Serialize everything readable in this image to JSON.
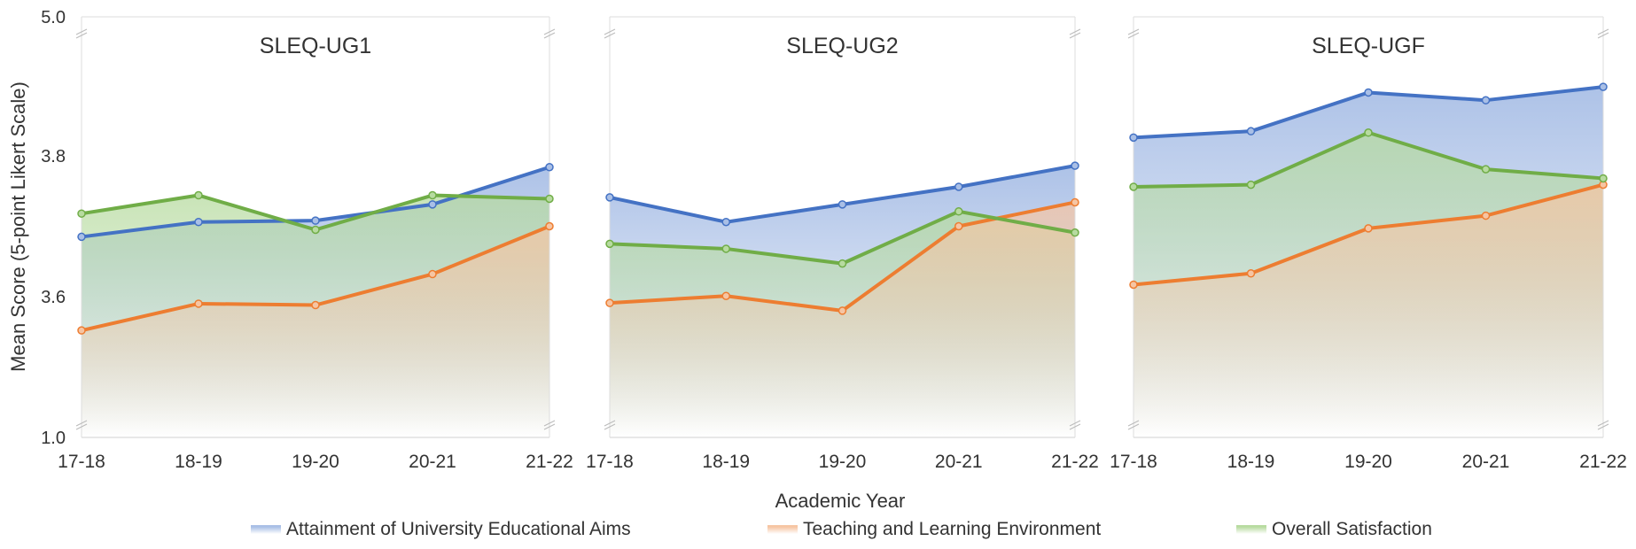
{
  "chart_data": {
    "type": "area",
    "ylabel": "Mean Score (5-point Likert Scale)",
    "xlabel": "Academic Year",
    "y_tick_labels": [
      "5.0",
      "3.8",
      "3.6",
      "1.0"
    ],
    "y_axis_note": "broken axis: 1.0 at bottom, then 3.6, 3.8, with break up to 5.0",
    "x_tick_labels": [
      "17-18",
      "18-19",
      "19-20",
      "20-21",
      "21-22"
    ],
    "grid": false,
    "legend_position": "bottom",
    "series_meta": [
      {
        "name": "Attainment of University Educational Aims",
        "color": "#4472c4",
        "fill": "#a9bfe6"
      },
      {
        "name": "Teaching and Learning Environment",
        "color": "#ed7d31",
        "fill": "#f6c5a3"
      },
      {
        "name": "Overall Satisfaction",
        "color": "#70ad47",
        "fill": "#b7dba0"
      }
    ],
    "panels": [
      {
        "title": "SLEQ-UG1",
        "series": [
          {
            "name": "Attainment of University Educational Aims",
            "values": [
              3.685,
              3.706,
              3.708,
              3.731,
              3.784
            ]
          },
          {
            "name": "Teaching and Learning Environment",
            "values": [
              3.552,
              3.59,
              3.588,
              3.632,
              3.7
            ]
          },
          {
            "name": "Overall Satisfaction",
            "values": [
              3.718,
              3.744,
              3.695,
              3.744,
              3.739
            ]
          }
        ]
      },
      {
        "title": "SLEQ-UG2",
        "series": [
          {
            "name": "Attainment of University Educational Aims",
            "values": [
              3.741,
              3.706,
              3.731,
              3.756,
              3.786
            ]
          },
          {
            "name": "Teaching and Learning Environment",
            "values": [
              3.591,
              3.601,
              3.58,
              3.7,
              3.734
            ]
          },
          {
            "name": "Overall Satisfaction",
            "values": [
              3.675,
              3.668,
              3.647,
              3.721,
              3.691
            ]
          }
        ]
      },
      {
        "title": "SLEQ-UGF",
        "series": [
          {
            "name": "Attainment of University Educational Aims",
            "values": [
              3.826,
              3.835,
              3.89,
              3.879,
              3.898
            ]
          },
          {
            "name": "Teaching and Learning Environment",
            "values": [
              3.617,
              3.633,
              3.697,
              3.715,
              3.759
            ]
          },
          {
            "name": "Overall Satisfaction",
            "values": [
              3.756,
              3.759,
              3.833,
              3.781,
              3.768
            ]
          }
        ]
      }
    ]
  }
}
